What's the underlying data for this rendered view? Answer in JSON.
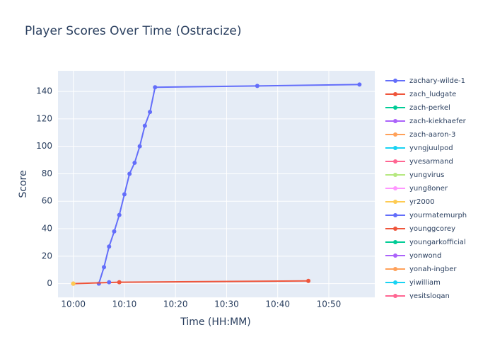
{
  "chart_data": {
    "type": "line",
    "title": "Player Scores Over Time (Ostracize)",
    "x_label": "Time (HH:MM)",
    "y_label": "Score",
    "xlim": [
      "09:57",
      "10:59"
    ],
    "xticks": [
      "10:00",
      "10:10",
      "10:20",
      "10:30",
      "10:40",
      "10:50"
    ],
    "ylim": [
      -10,
      155
    ],
    "yticks": [
      0,
      20,
      40,
      60,
      80,
      100,
      120,
      140
    ],
    "grid": true,
    "series": [
      {
        "name": "zachary-wilde-1",
        "color": "#636efa",
        "x": [
          "10:05",
          "10:06",
          "10:07",
          "10:08",
          "10:09",
          "10:10",
          "10:11",
          "10:12",
          "10:13",
          "10:14",
          "10:15",
          "10:16",
          "10:36",
          "10:56"
        ],
        "values": [
          0,
          12,
          27,
          38,
          50,
          65,
          80,
          88,
          100,
          115,
          125,
          143,
          144,
          145
        ]
      },
      {
        "name": "zach_ludgate",
        "color": "#ef553b",
        "x": [
          "10:00",
          "10:09",
          "10:46"
        ],
        "values": [
          0,
          1,
          2
        ]
      },
      {
        "name": "zach-perkel",
        "color": "#00cc96",
        "x": [],
        "values": []
      },
      {
        "name": "zach-kiekhaefer",
        "color": "#ab63fa",
        "x": [],
        "values": []
      },
      {
        "name": "zach-aaron-3",
        "color": "#ffa15a",
        "x": [
          "10:00"
        ],
        "values": [
          0
        ]
      },
      {
        "name": "yvngjuulpod",
        "color": "#19d3f3",
        "x": [],
        "values": []
      },
      {
        "name": "yvesarmand",
        "color": "#ff6692",
        "x": [],
        "values": []
      },
      {
        "name": "yungvirus",
        "color": "#b6e880",
        "x": [],
        "values": []
      },
      {
        "name": "yung8oner",
        "color": "#ff97ff",
        "x": [],
        "values": []
      },
      {
        "name": "yr2000",
        "color": "#fecb52",
        "x": [
          "10:00"
        ],
        "values": [
          0
        ]
      },
      {
        "name": "yourmatemurph",
        "color": "#636efa",
        "x": [
          "10:07"
        ],
        "values": [
          1
        ]
      },
      {
        "name": "younggcorey",
        "color": "#ef553b",
        "x": [],
        "values": []
      },
      {
        "name": "youngarkofficial",
        "color": "#00cc96",
        "x": [],
        "values": []
      },
      {
        "name": "yonwond",
        "color": "#ab63fa",
        "x": [],
        "values": []
      },
      {
        "name": "yonah-ingber",
        "color": "#ffa15a",
        "x": [],
        "values": []
      },
      {
        "name": "yiwilliam",
        "color": "#19d3f3",
        "x": [],
        "values": []
      },
      {
        "name": "yesitslogan",
        "color": "#ff6692",
        "x": [],
        "values": []
      }
    ]
  }
}
